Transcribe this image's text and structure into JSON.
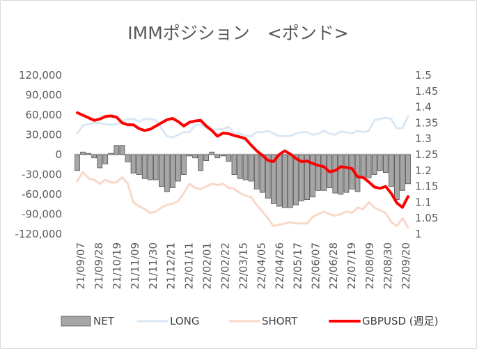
{
  "chart_data": {
    "type": "bar+line",
    "title": "IMMポジション　<ポンド>",
    "x_tick_labels": [
      "21/09/07",
      "21/09/28",
      "21/10/19",
      "21/11/09",
      "21/11/30",
      "21/12/21",
      "22/01/11",
      "22/02/01",
      "22/02/22",
      "22/03/15",
      "22/04/05",
      "22/04/26",
      "22/05/17",
      "22/06/07",
      "22/06/28",
      "22/07/19",
      "22/08/09",
      "22/08/30",
      "22/09/20"
    ],
    "y_left": {
      "range": [
        -120000,
        120000
      ],
      "ticks": [
        "120,000",
        "90,000",
        "60,000",
        "30,000",
        "0",
        "-30,000",
        "-60,000",
        "-90,000",
        "-120,000"
      ]
    },
    "y_right": {
      "range": [
        1,
        1.5
      ],
      "ticks": [
        "1.5",
        "1.45",
        "1.4",
        "1.35",
        "1.3",
        "1.25",
        "1.2",
        "1.15",
        "1.1",
        "1.05",
        "1"
      ]
    },
    "legend": [
      {
        "name": "NET",
        "color": "#a6a6a6",
        "kind": "bar"
      },
      {
        "name": "LONG",
        "color": "#dae8f5",
        "kind": "line"
      },
      {
        "name": "SHORT",
        "color": "#f8d8c8",
        "kind": "line"
      },
      {
        "name": "GBPUSD (週足)",
        "color": "#ff0000",
        "kind": "line"
      }
    ],
    "series": [
      {
        "name": "NET",
        "axis": "left",
        "values": [
          -24000,
          4000,
          2000,
          -5000,
          -20000,
          -14000,
          2000,
          14000,
          14000,
          -11000,
          -28000,
          -30000,
          -36000,
          -38000,
          -38000,
          -48000,
          -56000,
          -50000,
          -40000,
          -30000,
          -2000,
          -5000,
          -24000,
          -9000,
          4000,
          -5000,
          -2000,
          -10000,
          -30000,
          -36000,
          -38000,
          -40000,
          -52000,
          -57000,
          -66000,
          -74000,
          -78000,
          -80000,
          -80000,
          -76000,
          -70000,
          -68000,
          -64000,
          -54000,
          -54000,
          -50000,
          -58000,
          -60000,
          -57000,
          -52000,
          -56000,
          -34000,
          -35000,
          -30000,
          -24000,
          -27000,
          -48000,
          -68000,
          -54000,
          -44000
        ]
      },
      {
        "name": "LONG",
        "axis": "left",
        "values": [
          32000,
          44000,
          46000,
          48000,
          48000,
          46000,
          45000,
          46000,
          50000,
          54000,
          54000,
          50000,
          54000,
          54000,
          52000,
          40000,
          28000,
          26000,
          30000,
          34000,
          34000,
          44000,
          46000,
          40000,
          38000,
          38000,
          39000,
          42000,
          32000,
          32000,
          28000,
          28000,
          34000,
          34000,
          36000,
          32000,
          28000,
          28000,
          28000,
          32000,
          34000,
          34000,
          30000,
          32000,
          36000,
          32000,
          30000,
          35000,
          34000,
          32000,
          36000,
          34000,
          36000,
          52000,
          54000,
          56000,
          54000,
          40000,
          40000,
          58000
        ]
      },
      {
        "name": "SHORT",
        "axis": "left",
        "values": [
          -40000,
          -26000,
          -36000,
          -38000,
          -44000,
          -38000,
          -42000,
          -42000,
          -34000,
          -44000,
          -72000,
          -78000,
          -82000,
          -88000,
          -86000,
          -80000,
          -76000,
          -74000,
          -70000,
          -58000,
          -44000,
          -50000,
          -52000,
          -48000,
          -44000,
          -46000,
          -44000,
          -50000,
          -52000,
          -58000,
          -62000,
          -64000,
          -76000,
          -86000,
          -96000,
          -108000,
          -106000,
          -104000,
          -102000,
          -104000,
          -104000,
          -104000,
          -94000,
          -90000,
          -86000,
          -90000,
          -92000,
          -90000,
          -86000,
          -88000,
          -80000,
          -82000,
          -72000,
          -80000,
          -84000,
          -88000,
          -102000,
          -108000,
          -96000,
          -110000
        ]
      },
      {
        "name": "GBPUSD (週足)",
        "axis": "right",
        "values": [
          1.382,
          1.374,
          1.366,
          1.358,
          1.362,
          1.37,
          1.372,
          1.368,
          1.35,
          1.344,
          1.344,
          1.332,
          1.326,
          1.33,
          1.34,
          1.35,
          1.36,
          1.364,
          1.354,
          1.34,
          1.352,
          1.356,
          1.358,
          1.34,
          1.326,
          1.308,
          1.318,
          1.316,
          1.31,
          1.306,
          1.3,
          1.28,
          1.262,
          1.248,
          1.232,
          1.228,
          1.25,
          1.262,
          1.252,
          1.238,
          1.228,
          1.23,
          1.222,
          1.216,
          1.212,
          1.196,
          1.2,
          1.212,
          1.21,
          1.206,
          1.18,
          1.178,
          1.164,
          1.148,
          1.144,
          1.15,
          1.128,
          1.098,
          1.084,
          1.118
        ]
      }
    ]
  }
}
